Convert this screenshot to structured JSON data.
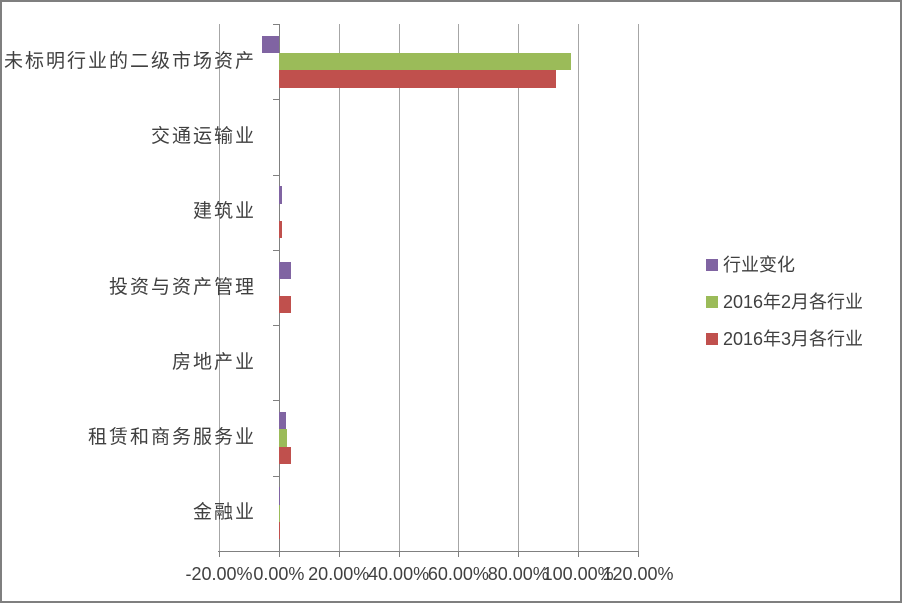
{
  "chart_data": {
    "type": "bar",
    "orientation": "horizontal",
    "title": "",
    "categories": [
      "未标明行业的二级市场资产",
      "交通运输业",
      "建筑业",
      "投资与资产管理",
      "房地产业",
      "租赁和商务服务业",
      "金融业"
    ],
    "series": [
      {
        "name": "行业变化",
        "color": "#8064A2",
        "values": [
          -5.7,
          0,
          1.1,
          4.0,
          0,
          2.4,
          0.4
        ]
      },
      {
        "name": "2016年2月各行业",
        "color": "#9BBB59",
        "values": [
          97.7,
          0,
          0.0,
          0.0,
          0,
          2.8,
          0.4
        ]
      },
      {
        "name": "2016年3月各行业",
        "color": "#C0504D",
        "values": [
          92.7,
          0,
          1.2,
          3.9,
          0,
          4.2,
          0.4
        ]
      }
    ],
    "x_axis": {
      "min": -20,
      "max": 120,
      "tick_step": 20,
      "tick_labels": [
        "-20.00%",
        "0.00%",
        "20.00%",
        "40.00%",
        "60.00%",
        "80.00%",
        "100.00%",
        "120.00%"
      ],
      "unit": "percent"
    },
    "ylabel": "",
    "xlabel": "",
    "grid": true,
    "legend": {
      "position": "right",
      "items": [
        "行业变化",
        "2016年2月各行业",
        "2016年3月各行业"
      ]
    },
    "colors": {
      "grid": "#A6A6A6",
      "axis": "#808080",
      "text": "#404040",
      "frame_border": "#7F7F7F",
      "background": "#FFFFFF"
    }
  }
}
